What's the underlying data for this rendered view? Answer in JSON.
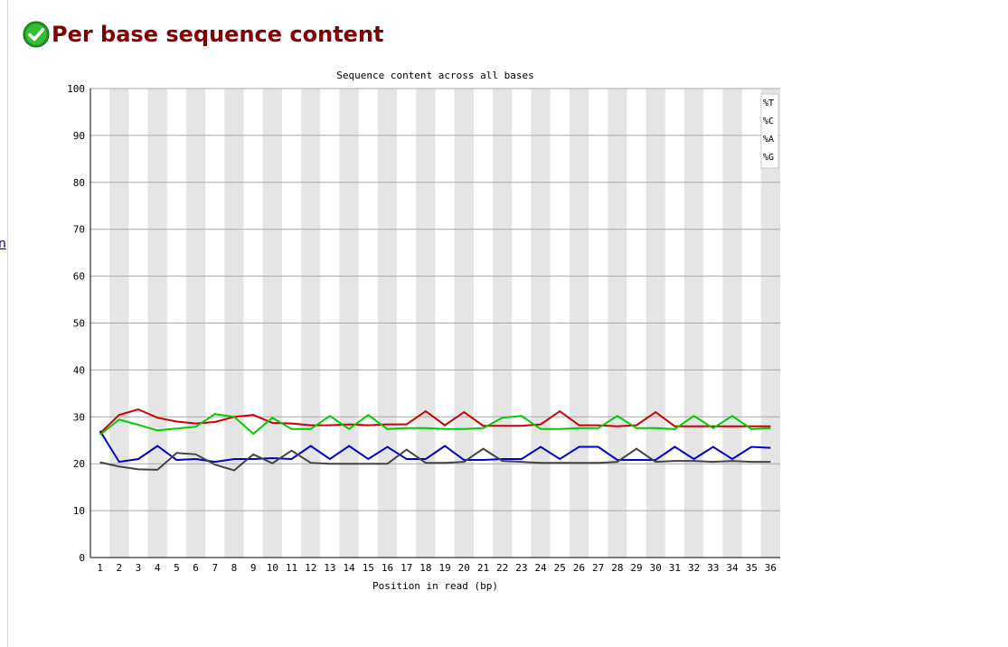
{
  "page": {
    "side_link_text": "n",
    "section_title": "Per base sequence content",
    "status_icon": "check-circle-icon",
    "status_color": "#22aa22",
    "title_color": "#800000"
  },
  "chart_data": {
    "type": "line",
    "title": "Sequence content across all bases",
    "xlabel": "Position in read (bp)",
    "ylabel": "",
    "ylim": [
      0,
      100
    ],
    "yticks": [
      0,
      10,
      20,
      30,
      40,
      50,
      60,
      70,
      80,
      90,
      100
    ],
    "categories": [
      "1",
      "2",
      "3",
      "4",
      "5",
      "6",
      "7",
      "8",
      "9",
      "10",
      "11",
      "12",
      "13",
      "14",
      "15",
      "16",
      "17",
      "18",
      "19",
      "20",
      "21",
      "22",
      "23",
      "24",
      "25",
      "26",
      "27",
      "28",
      "29",
      "30",
      "31",
      "32",
      "33",
      "34",
      "35",
      "36"
    ],
    "grid": true,
    "legend_position": "top-right",
    "series": [
      {
        "name": "%T",
        "color": "#cc0000",
        "values": [
          26.5,
          30.4,
          31.6,
          29.8,
          29.0,
          28.6,
          28.9,
          30.0,
          30.4,
          28.7,
          28.6,
          28.2,
          28.2,
          28.4,
          28.2,
          28.4,
          28.4,
          31.2,
          28.2,
          31.0,
          28.1,
          28.1,
          28.1,
          28.4,
          31.2,
          28.2,
          28.2,
          28.0,
          28.2,
          31.0,
          28.0,
          28.0,
          28.0,
          28.0,
          28.0,
          28.0
        ]
      },
      {
        "name": "%C",
        "color": "#0000cc",
        "values": [
          27.0,
          20.4,
          21.0,
          23.8,
          20.8,
          21.0,
          20.4,
          21.0,
          21.0,
          21.2,
          21.0,
          23.8,
          21.0,
          23.8,
          21.0,
          23.6,
          21.0,
          21.0,
          23.8,
          20.8,
          20.8,
          21.0,
          21.0,
          23.6,
          21.0,
          23.6,
          23.6,
          20.8,
          20.8,
          20.8,
          23.6,
          21.0,
          23.6,
          21.0,
          23.6,
          23.4
        ]
      },
      {
        "name": "%A",
        "color": "#00cc00",
        "values": [
          26.2,
          29.4,
          28.3,
          27.1,
          27.5,
          27.9,
          30.6,
          30.0,
          26.4,
          29.8,
          27.4,
          27.4,
          30.2,
          27.4,
          30.4,
          27.4,
          27.6,
          27.6,
          27.4,
          27.4,
          27.6,
          29.8,
          30.2,
          27.4,
          27.4,
          27.6,
          27.6,
          30.2,
          27.6,
          27.6,
          27.4,
          30.2,
          27.6,
          30.2,
          27.4,
          27.6
        ]
      },
      {
        "name": "%G",
        "color": "#444444",
        "values": [
          20.3,
          19.4,
          18.8,
          18.7,
          22.3,
          22.0,
          19.8,
          18.6,
          22.0,
          20.1,
          22.8,
          20.2,
          20.0,
          20.0,
          20.0,
          20.0,
          23.0,
          20.2,
          20.2,
          20.4,
          23.2,
          20.6,
          20.4,
          20.2,
          20.2,
          20.2,
          20.2,
          20.4,
          23.2,
          20.4,
          20.6,
          20.6,
          20.4,
          20.6,
          20.4,
          20.4
        ]
      }
    ]
  }
}
